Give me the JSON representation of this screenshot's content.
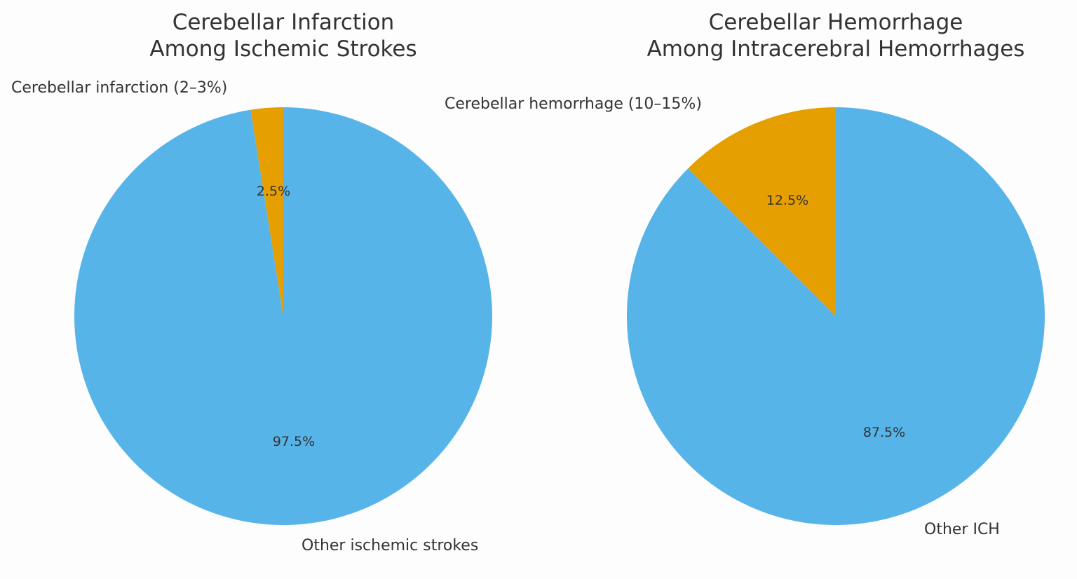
{
  "chart_data": [
    {
      "type": "pie",
      "title": "Cerebellar Infarction\nAmong Ischemic Strokes",
      "title_lines": [
        "Cerebellar Infarction",
        "Among Ischemic Strokes"
      ],
      "categories": [
        "Cerebellar infarction (2–3%)",
        "Other ischemic strokes"
      ],
      "values": [
        2.5,
        97.5
      ],
      "autopct_labels": [
        "2.5%",
        "97.5%"
      ],
      "colors": [
        "#E69F00",
        "#56B4E9"
      ],
      "start_angle": 90,
      "direction": "counterclockwise"
    },
    {
      "type": "pie",
      "title": "Cerebellar Hemorrhage\nAmong Intracerebral Hemorrhages",
      "title_lines": [
        "Cerebellar Hemorrhage",
        "Among Intracerebral Hemorrhages"
      ],
      "categories": [
        "Cerebellar hemorrhage (10–15%)",
        "Other ICH"
      ],
      "values": [
        12.5,
        87.5
      ],
      "autopct_labels": [
        "12.5%",
        "87.5%"
      ],
      "colors": [
        "#E69F00",
        "#56B4E9"
      ],
      "start_angle": 90,
      "direction": "counterclockwise"
    }
  ]
}
